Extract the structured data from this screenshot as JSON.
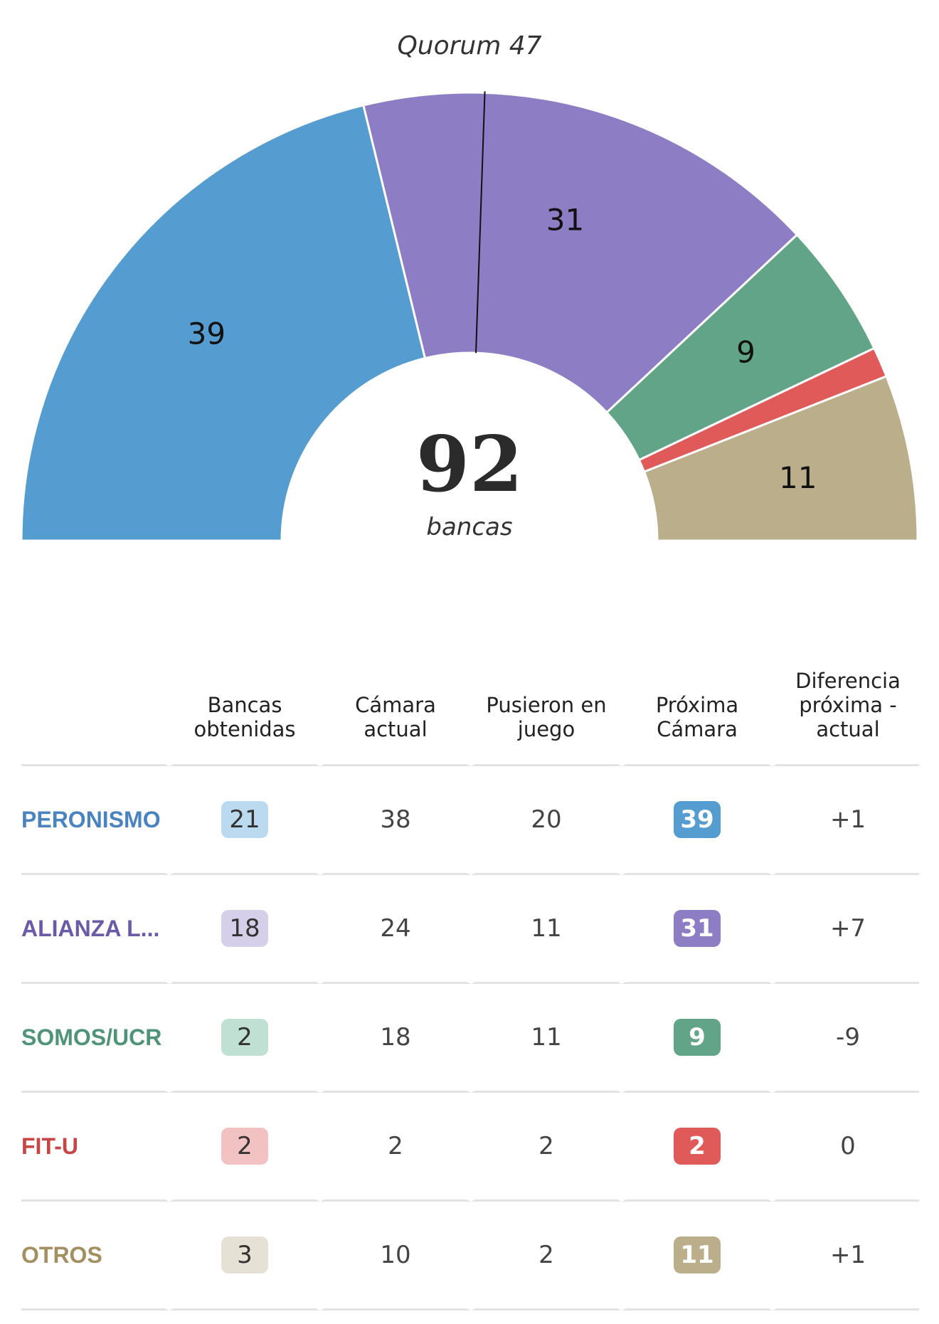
{
  "chart_data": {
    "type": "parliament-semicircle",
    "total": 92,
    "total_label": "bancas",
    "quorum": 47,
    "quorum_label": "Quorum 47",
    "segments": [
      {
        "party": "PERONISMO",
        "seats": 39,
        "color": "#559cd0"
      },
      {
        "party": "ALIANZA L...",
        "seats": 31,
        "color": "#8c7dc4"
      },
      {
        "party": "SOMOS/UCR",
        "seats": 9,
        "color": "#62a488"
      },
      {
        "party": "FIT-U",
        "seats": 2,
        "color": "#df5a59"
      },
      {
        "party": "OTROS",
        "seats": 11,
        "color": "#bbae8a"
      }
    ]
  },
  "table": {
    "headers": [
      "Bancas obtenidas",
      "Cámara actual",
      "Pusieron en juego",
      "Próxima Cámara",
      "Diferencia próxima - actual"
    ],
    "rows": [
      {
        "party": "PERONISMO",
        "color": "#4a84c0",
        "pill_light": "#bcdaef",
        "pill_solid": "#559cd0",
        "bancas": "21",
        "actual": "38",
        "juego": "20",
        "proxima": "39",
        "diferencia": "+1"
      },
      {
        "party": "ALIANZA L...",
        "color": "#6a5aa8",
        "pill_light": "#d6cfea",
        "pill_solid": "#8c7dc4",
        "bancas": "18",
        "actual": "24",
        "juego": "11",
        "proxima": "31",
        "diferencia": "+7"
      },
      {
        "party": "SOMOS/UCR",
        "color": "#4f9478",
        "pill_light": "#c0e0d3",
        "pill_solid": "#62a488",
        "bancas": "2",
        "actual": "18",
        "juego": "11",
        "proxima": "9",
        "diferencia": "-9"
      },
      {
        "party": "FIT-U",
        "color": "#c94444",
        "pill_light": "#f2c1c1",
        "pill_solid": "#df5a59",
        "bancas": "2",
        "actual": "2",
        "juego": "2",
        "proxima": "2",
        "diferencia": "0"
      },
      {
        "party": "OTROS",
        "color": "#a38f60",
        "pill_light": "#e6e1d5",
        "pill_solid": "#bbae8a",
        "bancas": "3",
        "actual": "10",
        "juego": "2",
        "proxima": "11",
        "diferencia": "+1"
      }
    ]
  }
}
